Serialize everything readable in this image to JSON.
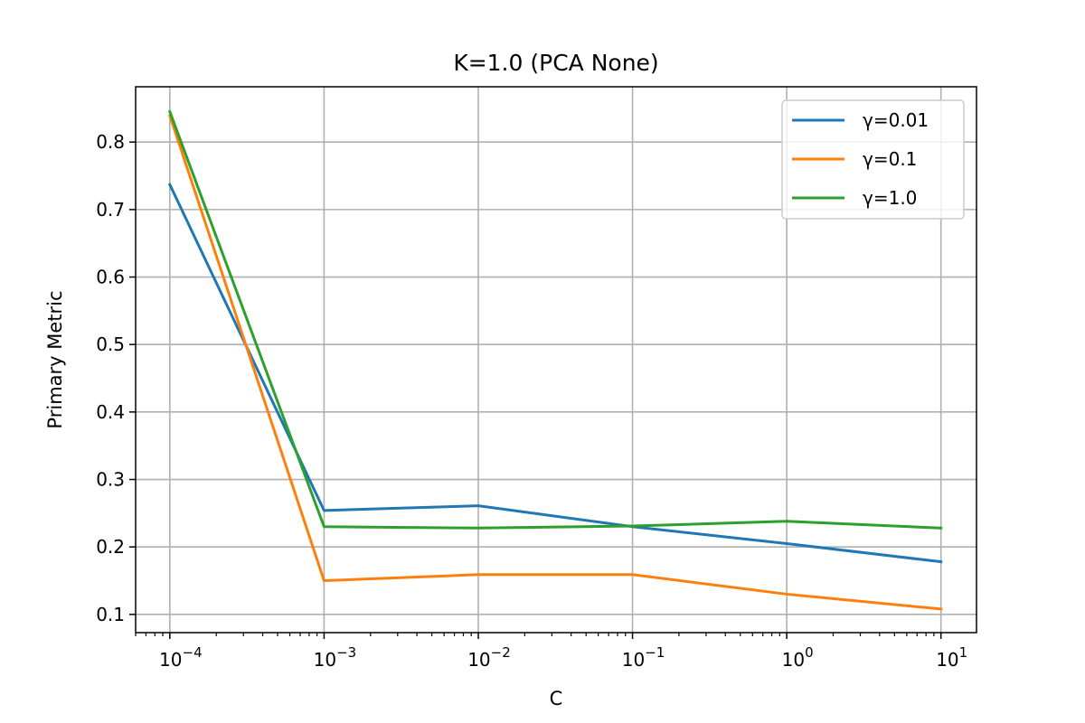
{
  "chart_data": {
    "type": "line",
    "title": "K=1.0 (PCA None)",
    "xlabel": "C",
    "ylabel": "Primary Metric",
    "xscale": "log",
    "xlim": [
      6e-05,
      17
    ],
    "ylim": [
      0.073,
      0.882
    ],
    "grid": true,
    "legend_position": "upper right",
    "x": [
      0.0001,
      0.001,
      0.01,
      0.1,
      1,
      10
    ],
    "x_tick_labels": [
      {
        "base": "10",
        "exp": "−4"
      },
      {
        "base": "10",
        "exp": "−3"
      },
      {
        "base": "10",
        "exp": "−2"
      },
      {
        "base": "10",
        "exp": "−1"
      },
      {
        "base": "10",
        "exp": "0"
      },
      {
        "base": "10",
        "exp": "1"
      }
    ],
    "y_ticks": [
      0.1,
      0.2,
      0.3,
      0.4,
      0.5,
      0.6,
      0.7,
      0.8
    ],
    "y_tick_labels": [
      "0.1",
      "0.2",
      "0.3",
      "0.4",
      "0.5",
      "0.6",
      "0.7",
      "0.8"
    ],
    "series": [
      {
        "name": "γ=0.01",
        "color": "#1f77b4",
        "values": [
          0.737,
          0.254,
          0.261,
          0.23,
          0.205,
          0.178
        ]
      },
      {
        "name": "γ=0.1",
        "color": "#ff7f0e",
        "values": [
          0.839,
          0.15,
          0.159,
          0.159,
          0.13,
          0.108
        ]
      },
      {
        "name": "γ=1.0",
        "color": "#2ca02c",
        "values": [
          0.845,
          0.23,
          0.228,
          0.231,
          0.238,
          0.228
        ]
      }
    ]
  }
}
